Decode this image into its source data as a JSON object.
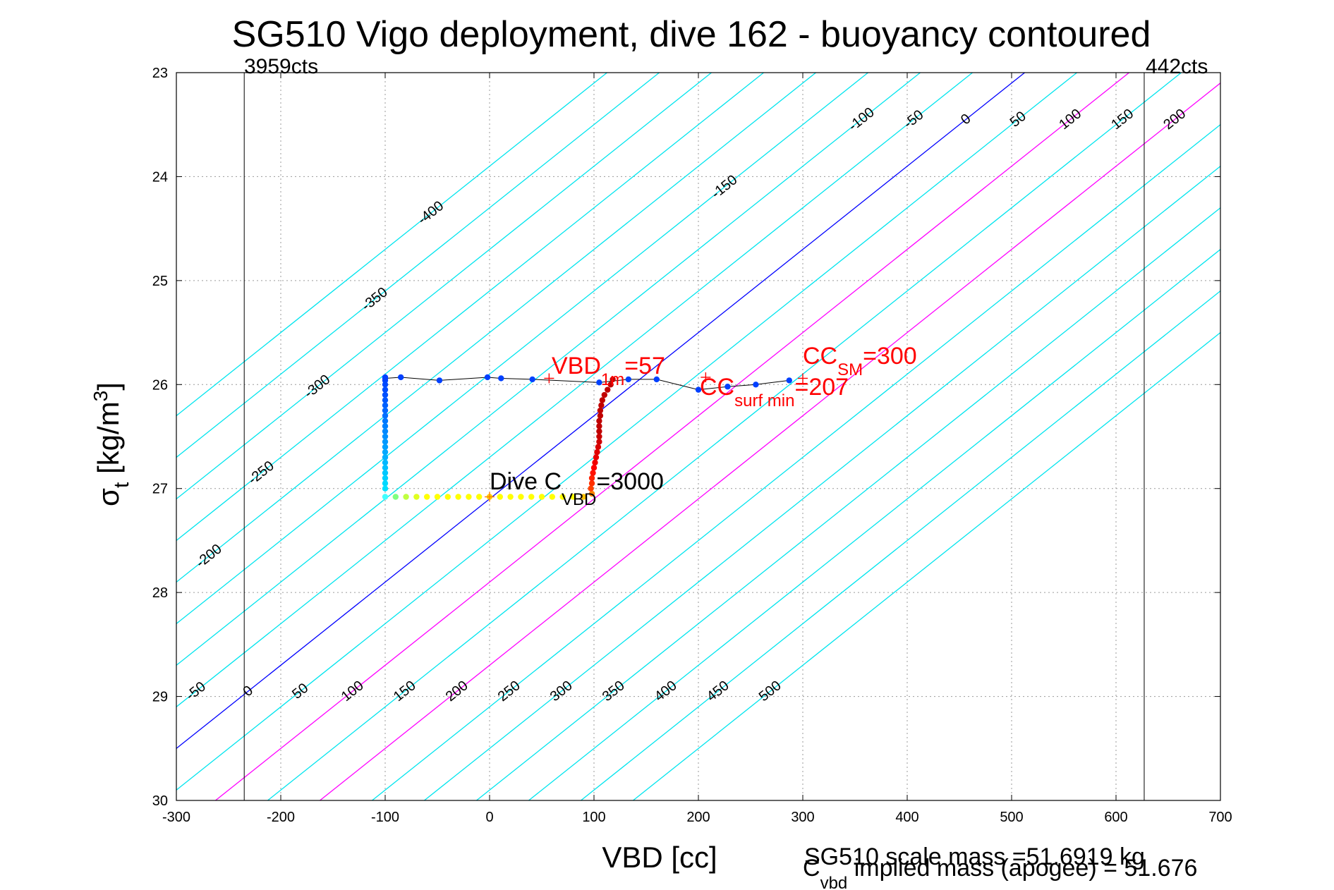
{
  "chart_data": {
    "type": "line",
    "title": "SG510 Vigo deployment, dive 162 - buoyancy contoured",
    "xlabel": "VBD [cc]",
    "ylabel_symbol": "σ",
    "ylabel_sub": "t",
    "ylabel_units": "[kg/m",
    "ylabel_sup": "3",
    "ylabel_close": "]",
    "xlim": [
      -300,
      700
    ],
    "ylim": [
      23,
      30
    ],
    "y_reversed": true,
    "grid": true,
    "xticks": [
      -300,
      -200,
      -100,
      0,
      100,
      200,
      300,
      400,
      500,
      600,
      700
    ],
    "yticks": [
      23,
      24,
      25,
      26,
      27,
      28,
      29,
      30
    ],
    "buoyancy_contours": {
      "levels": [
        -400,
        -350,
        -300,
        -250,
        -200,
        -150,
        -100,
        -50,
        0,
        50,
        100,
        150,
        200,
        250,
        300,
        350,
        400,
        450,
        500
      ],
      "anchor_sigma": 27.1,
      "slope_cc_per_sigma": -125,
      "zero_line_color": "#0000ff",
      "highlight_levels": [
        100,
        200
      ],
      "highlight_color": "#ff00ff",
      "default_color": "#00e5ee",
      "top_labels": [
        "-100",
        "-50",
        "0",
        "50",
        "100",
        "150",
        "200",
        "250",
        "300",
        "350",
        "400",
        "450",
        "500"
      ],
      "bottom_labels": [
        "0",
        "50",
        "100",
        "150",
        "200",
        "250",
        "300",
        "350",
        "400",
        "450",
        "500"
      ],
      "left_labels": [
        "-400",
        "-350",
        "-300",
        "-250",
        "-200",
        "-150",
        "-100",
        "-50"
      ]
    },
    "vertical_lines": [
      {
        "x": -235,
        "label": "3959cts"
      },
      {
        "x": 627,
        "label": "442cts"
      }
    ],
    "series": [
      {
        "x": [
          -100,
          -100,
          -100,
          -100,
          -100,
          -100,
          -100,
          -100,
          -100,
          -100,
          -100,
          -100,
          -100,
          -100,
          -100,
          -100,
          -100,
          -100,
          -100,
          -100,
          -100,
          -100,
          -100
        ],
        "y": [
          25.93,
          25.96,
          26.0,
          26.05,
          26.1,
          26.15,
          26.2,
          26.25,
          26.3,
          26.35,
          26.4,
          26.45,
          26.5,
          26.55,
          26.6,
          26.65,
          26.7,
          26.75,
          26.8,
          26.85,
          26.9,
          26.95,
          27.0
        ],
        "colors": [
          "#0040ff",
          "#0044ff",
          "#0048ff",
          "#004cff",
          "#0050ff",
          "#0058ff",
          "#0060ff",
          "#0068ff",
          "#0070ff",
          "#0078ff",
          "#0080ff",
          "#0088ff",
          "#0090ff",
          "#0098ff",
          "#00a0ff",
          "#00a8ff",
          "#00b0ff",
          "#00b8ff",
          "#00c0ff",
          "#00c8ff",
          "#00d0ff",
          "#00d8ff",
          "#00e0ff"
        ]
      },
      {
        "x": [
          -100,
          -90,
          -80,
          -70,
          -60,
          -50,
          -40,
          -30,
          -20,
          -10,
          0,
          10,
          20,
          30,
          40,
          50,
          60,
          70,
          80,
          90,
          98
        ],
        "y": [
          27.08,
          27.08,
          27.08,
          27.08,
          27.08,
          27.08,
          27.08,
          27.08,
          27.08,
          27.08,
          27.08,
          27.08,
          27.08,
          27.08,
          27.08,
          27.08,
          27.08,
          27.08,
          27.08,
          27.08,
          27.05
        ],
        "colors": [
          "#40ffff",
          "#80ff80",
          "#c0ff40",
          "#e0ff20",
          "#ffff00",
          "#ffff00",
          "#ffff00",
          "#ffff00",
          "#ffff00",
          "#ffff00",
          "#ffd000",
          "#ffff00",
          "#ffff00",
          "#ffff00",
          "#ffff00",
          "#ffff00",
          "#ffff00",
          "#ffff00",
          "#ffff00",
          "#ffc000",
          "#ff8000"
        ]
      },
      {
        "x": [
          97,
          98,
          98,
          99,
          100,
          101,
          102,
          103,
          104,
          105,
          105,
          105,
          105,
          105,
          106,
          106,
          107,
          108,
          110,
          113,
          116,
          118
        ],
        "y": [
          27.0,
          26.95,
          26.9,
          26.85,
          26.8,
          26.75,
          26.7,
          26.65,
          26.6,
          26.55,
          26.5,
          26.45,
          26.4,
          26.35,
          26.3,
          26.25,
          26.2,
          26.15,
          26.1,
          26.05,
          26.0,
          25.95
        ],
        "colors": [
          "#ff4000",
          "#ff3000",
          "#ff2000",
          "#ff1000",
          "#ff0000",
          "#f00000",
          "#e80000",
          "#e00000",
          "#d80000",
          "#d00000",
          "#c80000",
          "#c00000",
          "#c00000",
          "#c00000",
          "#c00000",
          "#c00000",
          "#c00000",
          "#c00000",
          "#c00000",
          "#c00000",
          "#c00000",
          "#c00000"
        ]
      },
      {
        "x": [
          -100,
          -85,
          -48,
          -2,
          11,
          41,
          105,
          133,
          160,
          200,
          228,
          255,
          287
        ],
        "y": [
          25.94,
          25.93,
          25.96,
          25.93,
          25.94,
          25.95,
          25.98,
          25.95,
          25.95,
          26.05,
          26.02,
          26.0,
          25.96
        ],
        "colors": [
          "#0040ff",
          "#0040ff",
          "#0040ff",
          "#0040ff",
          "#0040ff",
          "#0040ff",
          "#0040ff",
          "#0040ff",
          "#0040ff",
          "#0040ff",
          "#0040ff",
          "#0040ff",
          "#0040ff"
        ]
      }
    ],
    "markers": [
      {
        "x": 57,
        "y": 25.94,
        "color": "#ff0000"
      },
      {
        "x": 300,
        "y": 25.94,
        "color": "#ff0000"
      },
      {
        "x": 207,
        "y": 25.93,
        "color": "#ff0000"
      },
      {
        "x": 0,
        "y": 27.08,
        "color": "#ff8000"
      }
    ],
    "annotations": {
      "vbd1m": {
        "main": "VBD",
        "sub": "1m",
        "value": "=57"
      },
      "ccsm": {
        "main": "CC",
        "sub": "SM",
        "value": "=300"
      },
      "ccsurf": {
        "main": "CC",
        "sub": "surf min",
        "value": "=207"
      },
      "divec": {
        "main": "Dive C",
        "sub": "VBD",
        "value": "=3000"
      }
    },
    "footer": {
      "line1": "SG510 scale mass =51.6919 kg",
      "line2_main": "C",
      "line2_sub": "vbd",
      "line2_rest": " implied mass (apogee) = 51.676"
    }
  }
}
